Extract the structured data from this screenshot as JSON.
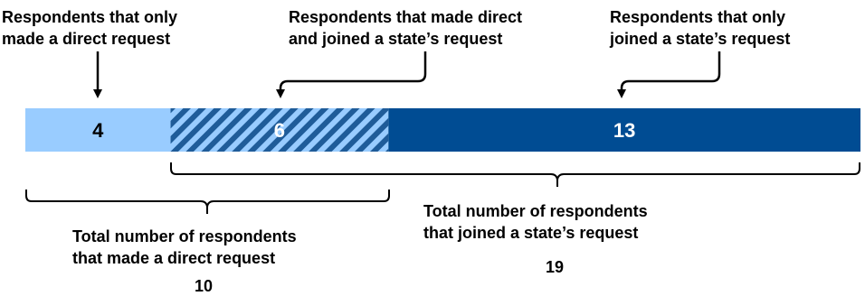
{
  "chart_data": {
    "type": "bar",
    "orientation": "horizontal-stacked",
    "segments": [
      {
        "label": "Respondents that only made a direct request",
        "value": 4,
        "color": "#99CCFF",
        "pattern": "solid",
        "text_color": "#000000"
      },
      {
        "label": "Respondents that made direct and joined a state’s request",
        "value": 6,
        "color": "#1F5C99",
        "pattern": "hatched",
        "text_color": "#FFFFFF"
      },
      {
        "label": "Respondents that only joined a state’s request",
        "value": 13,
        "color": "#004C93",
        "pattern": "solid",
        "text_color": "#FFFFFF"
      }
    ],
    "annotations_top": [
      [
        "Respondents that only",
        "made a direct request"
      ],
      [
        "Respondents that made direct",
        "and joined a state’s request"
      ],
      [
        "Respondents that only",
        "joined a state’s request"
      ]
    ],
    "totals": [
      {
        "label": [
          "Total number of respondents",
          "that made a direct request"
        ],
        "value": 10
      },
      {
        "label": [
          "Total number of respondents",
          "that joined a state’s request"
        ],
        "value": 19
      }
    ]
  }
}
